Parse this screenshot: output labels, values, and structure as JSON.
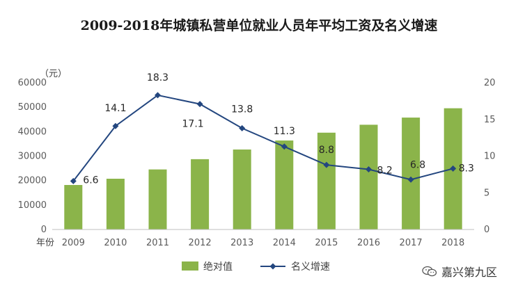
{
  "chart_data": {
    "type": "bar+line",
    "title": "2009-2018年城镇私营单位就业人员年平均工资及名义增速",
    "y_left_unit": "（元）",
    "x_unit_label": "年份",
    "categories": [
      "2009",
      "2010",
      "2011",
      "2012",
      "2013",
      "2014",
      "2015",
      "2016",
      "2017",
      "2018"
    ],
    "y_left_ticks": [
      "0",
      "10000",
      "20000",
      "30000",
      "40000",
      "50000",
      "60000"
    ],
    "y_left_lim": [
      0,
      60000
    ],
    "y_right_ticks": [
      "0",
      "5",
      "10",
      "15",
      "20"
    ],
    "y_right_lim": [
      0,
      20
    ],
    "series": [
      {
        "name": "绝对值",
        "type": "bar",
        "axis": "left",
        "color": "#8bb44a",
        "values": [
          18199,
          20759,
          24556,
          28752,
          32706,
          36390,
          39589,
          42833,
          45761,
          49575
        ]
      },
      {
        "name": "名义增速",
        "type": "line",
        "axis": "right",
        "color": "#23467f",
        "values": [
          6.6,
          14.1,
          18.3,
          17.1,
          13.8,
          11.3,
          8.8,
          8.2,
          6.8,
          8.3
        ],
        "labels": [
          "6.6",
          "14.1",
          "18.3",
          "17.1",
          "13.8",
          "11.3",
          "8.8",
          "8.2",
          "6.8",
          "8.3"
        ]
      }
    ],
    "legend_position": "bottom"
  },
  "watermark": {
    "text": "嘉兴第九区",
    "icon": "wechat-icon"
  }
}
